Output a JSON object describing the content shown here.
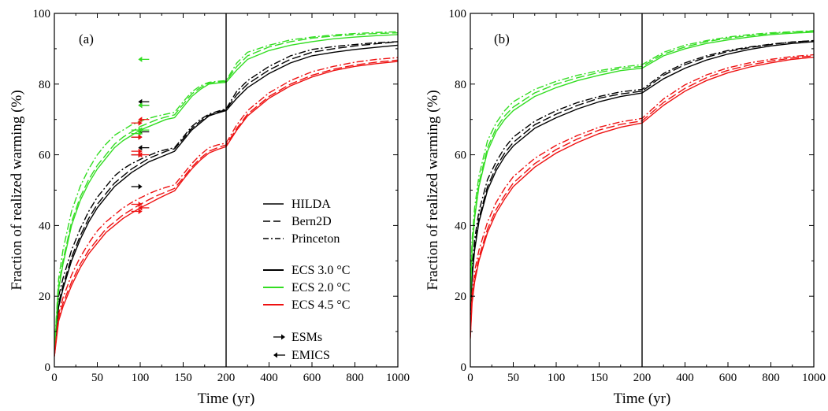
{
  "colors": {
    "ecs_3_0": "#000000",
    "ecs_2_0": "#33dd22",
    "ecs_4_5": "#ee1111"
  },
  "legend": {
    "models": [
      {
        "label": "HILDA",
        "dash": "solid"
      },
      {
        "label": "Bern2D",
        "dash": "dashed"
      },
      {
        "label": "Princeton",
        "dash": "dashdot"
      }
    ],
    "ecs": [
      {
        "label": "ECS 3.0 °C",
        "color": "#000000"
      },
      {
        "label": "ECS 2.0 °C",
        "color": "#33dd22"
      },
      {
        "label": "ECS 4.5 °C",
        "color": "#ee1111"
      }
    ],
    "arrows": [
      {
        "label": "ESMs",
        "dir": "right"
      },
      {
        "label": "EMICS",
        "dir": "left"
      }
    ]
  },
  "chart_data": [
    {
      "type": "line",
      "panel_label": "(a)",
      "xlabel": "Time (yr)",
      "ylabel": "Fraction of realized warming (%)",
      "ylim": [
        0,
        100
      ],
      "yticks": [
        0,
        20,
        40,
        60,
        80,
        100
      ],
      "x_axis_broken": true,
      "xlim_left": [
        0,
        200
      ],
      "xticks_left": [
        0,
        50,
        100,
        150,
        200
      ],
      "xlim_right": [
        200,
        1000
      ],
      "xticks_right": [
        200,
        400,
        600,
        800,
        1000
      ],
      "grid": false,
      "x": [
        0,
        5,
        10,
        20,
        30,
        40,
        50,
        60,
        70,
        80,
        90,
        100,
        110,
        120,
        130,
        140,
        150,
        160,
        170,
        180,
        190,
        200,
        250,
        300,
        400,
        500,
        600,
        700,
        800,
        900,
        1000
      ],
      "series": [
        {
          "model": "HILDA",
          "ecs": "3.0",
          "dash": "solid",
          "color": "#000000",
          "values": [
            5,
            17,
            22,
            30,
            36,
            41,
            45,
            48,
            51,
            53,
            55,
            56.5,
            58,
            59,
            60,
            61,
            64,
            67,
            69,
            71,
            71.8,
            72.5,
            76,
            79,
            83,
            86,
            88,
            89,
            89.8,
            90.4,
            91
          ]
        },
        {
          "model": "Bern2D",
          "ecs": "3.0",
          "dash": "dashed",
          "color": "#000000",
          "values": [
            5,
            18,
            23,
            31,
            37,
            42,
            46,
            49,
            52,
            54,
            56,
            57.5,
            59,
            60,
            61,
            61.7,
            64.5,
            67.5,
            69.5,
            71.2,
            72,
            72.8,
            77,
            80,
            84,
            87,
            89,
            90,
            90.8,
            91.4,
            92
          ]
        },
        {
          "model": "Princeton",
          "ecs": "3.0",
          "dash": "dashdot",
          "color": "#000000",
          "values": [
            5,
            20,
            25,
            33,
            39,
            44,
            48,
            51,
            54,
            56,
            57.5,
            58.7,
            59.8,
            60.8,
            61.5,
            62,
            65,
            68,
            70,
            71.5,
            72.3,
            73,
            78,
            81,
            85,
            88,
            89.8,
            90.6,
            91.2,
            91.7,
            92
          ]
        },
        {
          "model": "HILDA",
          "ecs": "2.0",
          "dash": "solid",
          "color": "#33dd22",
          "values": [
            5,
            22,
            29,
            40,
            47,
            52,
            56,
            59,
            62,
            64,
            65.5,
            67,
            68,
            69,
            70,
            70.5,
            73.5,
            76.5,
            78.5,
            80,
            80.3,
            80.5,
            84,
            87,
            89.5,
            91,
            92,
            92.8,
            93.3,
            93.7,
            94
          ]
        },
        {
          "model": "Bern2D",
          "ecs": "2.0",
          "dash": "dashed",
          "color": "#33dd22",
          "values": [
            5,
            23,
            30,
            41,
            48,
            53,
            57,
            60,
            63,
            65,
            66.5,
            68,
            69,
            70,
            70.7,
            71.3,
            74.3,
            77.2,
            79,
            80.3,
            80.6,
            80.8,
            85,
            88,
            90.5,
            92,
            93,
            93.6,
            94,
            94.3,
            94.5
          ]
        },
        {
          "model": "Princeton",
          "ecs": "2.0",
          "dash": "dashdot",
          "color": "#33dd22",
          "values": [
            5,
            25,
            33,
            44,
            51,
            56,
            60,
            63,
            65.5,
            67,
            68.5,
            69.5,
            70.3,
            71,
            71.5,
            72,
            75,
            77.8,
            79.5,
            80.5,
            80.8,
            81,
            86,
            89,
            91,
            92.5,
            93.3,
            93.9,
            94.3,
            94.6,
            94.8
          ]
        },
        {
          "model": "HILDA",
          "ecs": "4.5",
          "dash": "solid",
          "color": "#ee1111",
          "values": [
            3,
            13,
            17,
            23,
            28,
            32,
            35,
            38,
            40,
            42,
            43.5,
            45,
            46.2,
            47.5,
            48.7,
            49.8,
            53,
            56,
            58.5,
            60.5,
            61.5,
            62.3,
            67,
            71,
            76,
            79.5,
            82,
            83.8,
            85,
            85.8,
            86.4
          ]
        },
        {
          "model": "Bern2D",
          "ecs": "4.5",
          "dash": "dashed",
          "color": "#ee1111",
          "values": [
            3,
            14,
            18,
            24,
            29,
            33,
            36,
            39,
            41,
            43,
            44.5,
            46,
            47.3,
            48.5,
            49.5,
            50.5,
            53.5,
            56.5,
            59,
            61,
            62,
            62.8,
            67.5,
            71.5,
            76.5,
            80,
            82.5,
            84.2,
            85.4,
            86.2,
            86.8
          ]
        },
        {
          "model": "Princeton",
          "ecs": "4.5",
          "dash": "dashdot",
          "color": "#ee1111",
          "values": [
            3,
            15,
            19.5,
            26,
            31,
            35,
            38.5,
            41,
            43,
            45,
            46.5,
            47.8,
            49,
            50,
            50.8,
            51.5,
            54.5,
            57.5,
            60,
            62,
            62.8,
            63.3,
            68.5,
            72.5,
            77.5,
            81,
            83.5,
            85,
            86.2,
            87,
            87.5
          ]
        }
      ],
      "markers": [
        {
          "x": 96,
          "y": 51,
          "dir": "right",
          "color": "#000000"
        },
        {
          "x": 96,
          "y": 60,
          "dir": "right",
          "color": "#000000"
        },
        {
          "x": 96,
          "y": 65,
          "dir": "right",
          "color": "#000000"
        },
        {
          "x": 104,
          "y": 75,
          "dir": "left",
          "color": "#000000"
        },
        {
          "x": 104,
          "y": 74,
          "dir": "left",
          "color": "#000000"
        },
        {
          "x": 104,
          "y": 66.5,
          "dir": "left",
          "color": "#000000"
        },
        {
          "x": 104,
          "y": 62,
          "dir": "left",
          "color": "#000000"
        },
        {
          "x": 104,
          "y": 87,
          "dir": "left",
          "color": "#33dd22"
        },
        {
          "x": 104,
          "y": 74,
          "dir": "left",
          "color": "#33dd22"
        },
        {
          "x": 104,
          "y": 67,
          "dir": "left",
          "color": "#33dd22"
        },
        {
          "x": 96,
          "y": 67,
          "dir": "right",
          "color": "#33dd22"
        },
        {
          "x": 96,
          "y": 66,
          "dir": "right",
          "color": "#33dd22"
        },
        {
          "x": 96,
          "y": 69,
          "dir": "right",
          "color": "#ee1111"
        },
        {
          "x": 96,
          "y": 65,
          "dir": "right",
          "color": "#ee1111"
        },
        {
          "x": 96,
          "y": 61,
          "dir": "right",
          "color": "#ee1111"
        },
        {
          "x": 96,
          "y": 60,
          "dir": "right",
          "color": "#ee1111"
        },
        {
          "x": 96,
          "y": 46,
          "dir": "right",
          "color": "#ee1111"
        },
        {
          "x": 96,
          "y": 44,
          "dir": "right",
          "color": "#ee1111"
        },
        {
          "x": 104,
          "y": 70,
          "dir": "left",
          "color": "#ee1111"
        },
        {
          "x": 104,
          "y": 60,
          "dir": "left",
          "color": "#ee1111"
        },
        {
          "x": 104,
          "y": 45,
          "dir": "left",
          "color": "#ee1111"
        }
      ]
    },
    {
      "type": "line",
      "panel_label": "(b)",
      "xlabel": "Time (yr)",
      "ylabel": "Fraction of realized warming (%)",
      "ylim": [
        0,
        100
      ],
      "yticks": [
        0,
        20,
        40,
        60,
        80,
        100
      ],
      "x_axis_broken": true,
      "xlim_left": [
        0,
        200
      ],
      "xticks_left": [
        0,
        50,
        100,
        150,
        200
      ],
      "xlim_right": [
        200,
        1000
      ],
      "xticks_right": [
        200,
        400,
        600,
        800,
        1000
      ],
      "grid": false,
      "x": [
        0,
        2,
        5,
        10,
        20,
        30,
        40,
        50,
        75,
        100,
        125,
        150,
        175,
        200,
        300,
        400,
        500,
        600,
        700,
        800,
        900,
        1000
      ],
      "series": [
        {
          "model": "HILDA",
          "ecs": "3.0",
          "dash": "solid",
          "color": "#000000",
          "values": [
            12,
            25,
            33,
            41,
            50,
            55.5,
            59.5,
            62.5,
            67.5,
            70.5,
            73,
            75,
            76.5,
            77.5,
            81.5,
            84.5,
            86.8,
            88.5,
            89.8,
            90.8,
            91.5,
            92
          ]
        },
        {
          "model": "Bern2D",
          "ecs": "3.0",
          "dash": "dashed",
          "color": "#000000",
          "values": [
            13,
            26,
            34,
            42,
            51,
            56.5,
            60.5,
            63.5,
            68.5,
            71.5,
            74,
            76,
            77.2,
            78,
            82.5,
            85.5,
            87.6,
            89.2,
            90.3,
            91.2,
            91.9,
            92.3
          ]
        },
        {
          "model": "Princeton",
          "ecs": "3.0",
          "dash": "dashdot",
          "color": "#000000",
          "values": [
            15,
            28,
            36,
            44,
            53,
            58,
            62,
            65,
            69.5,
            72.5,
            74.8,
            76.5,
            77.8,
            78.5,
            83,
            86,
            88,
            89.5,
            90.5,
            91.3,
            91.9,
            92.3
          ]
        },
        {
          "model": "HILDA",
          "ecs": "2.0",
          "dash": "solid",
          "color": "#33dd22",
          "values": [
            18,
            33,
            42,
            51,
            61,
            66.5,
            70,
            72.5,
            76.5,
            79,
            81,
            82.5,
            83.8,
            84.5,
            88,
            90,
            91.5,
            92.5,
            93.3,
            94,
            94.4,
            94.7
          ]
        },
        {
          "model": "Bern2D",
          "ecs": "2.0",
          "dash": "dashed",
          "color": "#33dd22",
          "values": [
            19,
            34,
            43,
            52,
            62,
            67.5,
            71,
            73.5,
            77.5,
            80,
            81.8,
            83.3,
            84.4,
            85,
            88.5,
            90.5,
            92,
            93,
            93.7,
            94.3,
            94.7,
            95
          ]
        },
        {
          "model": "Princeton",
          "ecs": "2.0",
          "dash": "dashdot",
          "color": "#33dd22",
          "values": [
            21,
            36,
            45,
            54,
            64,
            69,
            72.5,
            75,
            78.5,
            80.8,
            82.5,
            83.8,
            84.8,
            85.5,
            89,
            91,
            92.3,
            93.3,
            94,
            94.5,
            94.8,
            95.1
          ]
        },
        {
          "model": "HILDA",
          "ecs": "4.5",
          "dash": "solid",
          "color": "#ee1111",
          "values": [
            8,
            18,
            24,
            30,
            38,
            43.5,
            47.5,
            51,
            56.5,
            60.5,
            63.5,
            66,
            67.8,
            69,
            74,
            78,
            81,
            83.2,
            84.8,
            86,
            87,
            87.6
          ]
        },
        {
          "model": "Bern2D",
          "ecs": "4.5",
          "dash": "dashed",
          "color": "#ee1111",
          "values": [
            8.5,
            19,
            25,
            31,
            39,
            44.5,
            48.5,
            52,
            57.5,
            61.5,
            64.5,
            67,
            68.6,
            69.6,
            74.8,
            78.8,
            81.8,
            83.9,
            85.4,
            86.5,
            87.4,
            88
          ]
        },
        {
          "model": "Princeton",
          "ecs": "4.5",
          "dash": "dashdot",
          "color": "#ee1111",
          "values": [
            9,
            20.5,
            27,
            33,
            41,
            46.5,
            50.5,
            53.8,
            59,
            62.7,
            65.5,
            67.8,
            69.3,
            70.3,
            75.8,
            79.8,
            82.6,
            84.6,
            86,
            87,
            87.8,
            88.3
          ]
        }
      ],
      "markers": []
    }
  ]
}
